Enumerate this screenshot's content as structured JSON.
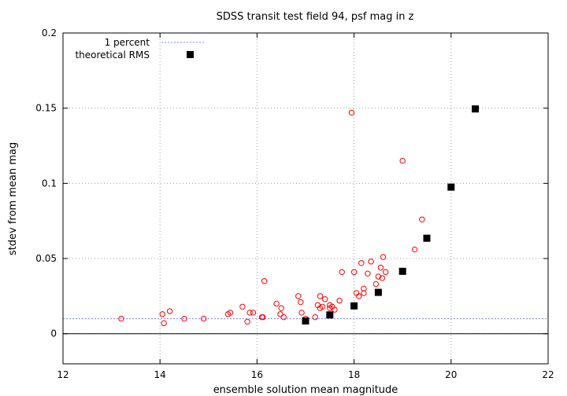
{
  "chart_data": {
    "type": "scatter",
    "title": "SDSS transit test field 94, psf mag in z",
    "xlabel": "ensemble solution mean magnitude",
    "ylabel": "stdev from mean mag",
    "xlim": [
      12,
      22
    ],
    "ylim": [
      -0.02,
      0.2
    ],
    "x_ticks": [
      "12",
      "14",
      "16",
      "18",
      "20",
      "22"
    ],
    "y_ticks": [
      "0",
      "0.05",
      "0.1",
      "0.15",
      "0.2"
    ],
    "grid": true,
    "legend": "top-left",
    "colors": {
      "stars": "#ff0000",
      "one_percent": "#8080ff",
      "theoretical": "#000000"
    },
    "reference_line": {
      "name": "1 percent",
      "y": 0.01
    },
    "series": [
      {
        "name": "",
        "marker": "open-circle",
        "points": [
          [
            13.2,
            0.01
          ],
          [
            14.05,
            0.013
          ],
          [
            14.08,
            0.007
          ],
          [
            14.2,
            0.015
          ],
          [
            14.5,
            0.01
          ],
          [
            14.9,
            0.01
          ],
          [
            15.4,
            0.013
          ],
          [
            15.45,
            0.014
          ],
          [
            15.7,
            0.018
          ],
          [
            15.8,
            0.008
          ],
          [
            15.85,
            0.014
          ],
          [
            15.92,
            0.014
          ],
          [
            16.1,
            0.011
          ],
          [
            16.12,
            0.011
          ],
          [
            16.15,
            0.035
          ],
          [
            16.4,
            0.02
          ],
          [
            16.48,
            0.013
          ],
          [
            16.5,
            0.017
          ],
          [
            16.55,
            0.011
          ],
          [
            16.85,
            0.025
          ],
          [
            16.9,
            0.021
          ],
          [
            16.92,
            0.014
          ],
          [
            17.0,
            0.01
          ],
          [
            17.2,
            0.011
          ],
          [
            17.25,
            0.019
          ],
          [
            17.3,
            0.025
          ],
          [
            17.3,
            0.017
          ],
          [
            17.35,
            0.018
          ],
          [
            17.4,
            0.023
          ],
          [
            17.5,
            0.019
          ],
          [
            17.5,
            0.017
          ],
          [
            17.55,
            0.018
          ],
          [
            17.6,
            0.016
          ],
          [
            17.7,
            0.022
          ],
          [
            17.75,
            0.041
          ],
          [
            17.95,
            0.147
          ],
          [
            18.0,
            0.041
          ],
          [
            18.0,
            0.019
          ],
          [
            18.05,
            0.027
          ],
          [
            18.1,
            0.025
          ],
          [
            18.15,
            0.047
          ],
          [
            18.2,
            0.027
          ],
          [
            18.2,
            0.03
          ],
          [
            18.28,
            0.04
          ],
          [
            18.35,
            0.048
          ],
          [
            18.45,
            0.033
          ],
          [
            18.5,
            0.038
          ],
          [
            18.55,
            0.044
          ],
          [
            18.58,
            0.037
          ],
          [
            18.6,
            0.051
          ],
          [
            18.65,
            0.041
          ],
          [
            19.0,
            0.115
          ],
          [
            19.25,
            0.056
          ],
          [
            19.4,
            0.076
          ]
        ]
      },
      {
        "name": "theoretical RMS",
        "marker": "filled-square",
        "points": [
          [
            17.0,
            0.0085
          ],
          [
            17.5,
            0.0125
          ],
          [
            18.0,
            0.0185
          ],
          [
            18.5,
            0.0275
          ],
          [
            19.0,
            0.0415
          ],
          [
            19.5,
            0.0635
          ],
          [
            20.0,
            0.0975
          ],
          [
            20.5,
            0.1495
          ]
        ]
      }
    ]
  }
}
